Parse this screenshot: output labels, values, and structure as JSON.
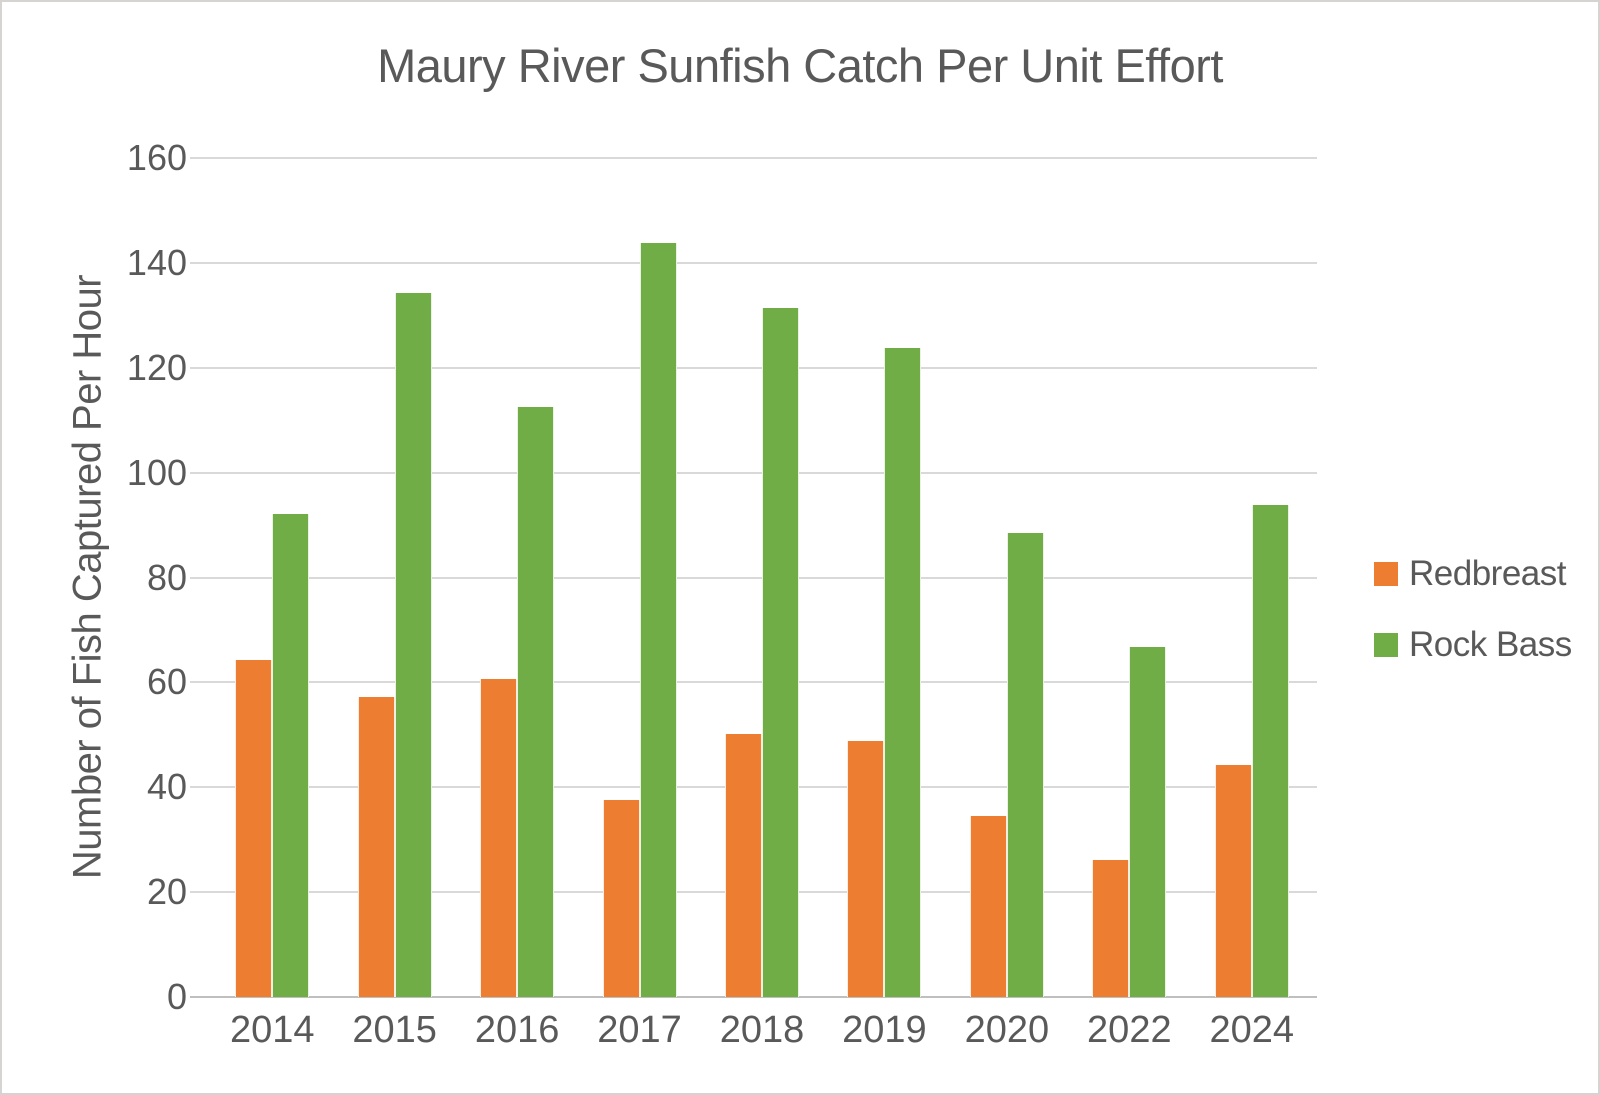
{
  "frame": {
    "background_color": "#ffffff",
    "border_color": "#d6d3d3"
  },
  "chart_data": {
    "type": "bar",
    "title": "Maury River Sunfish Catch Per Unit Effort",
    "xlabel": "",
    "ylabel": "Number of Fish Captured Per Hour",
    "categories": [
      "2014",
      "2015",
      "2016",
      "2017",
      "2018",
      "2019",
      "2020",
      "2022",
      "2024"
    ],
    "series": [
      {
        "name": "Redbreast",
        "color": "#ED7D31",
        "values": [
          64.3,
          57.3,
          60.6,
          37.5,
          50.1,
          48.9,
          34.6,
          26.1,
          44.2
        ]
      },
      {
        "name": "Rock Bass",
        "color": "#70AD47",
        "values": [
          92.1,
          134.2,
          112.5,
          143.7,
          131.4,
          123.8,
          88.5,
          66.7,
          93.8
        ]
      }
    ],
    "ylim": [
      0,
      160
    ],
    "ytick_step": 20,
    "yticks": [
      "0",
      "20",
      "40",
      "60",
      "80",
      "100",
      "120",
      "140",
      "160"
    ],
    "grid": true,
    "grid_color": "#d9d9d9",
    "axis_line_color": "#bfbfbf",
    "text_color": "#595959",
    "legend_position": "right"
  }
}
